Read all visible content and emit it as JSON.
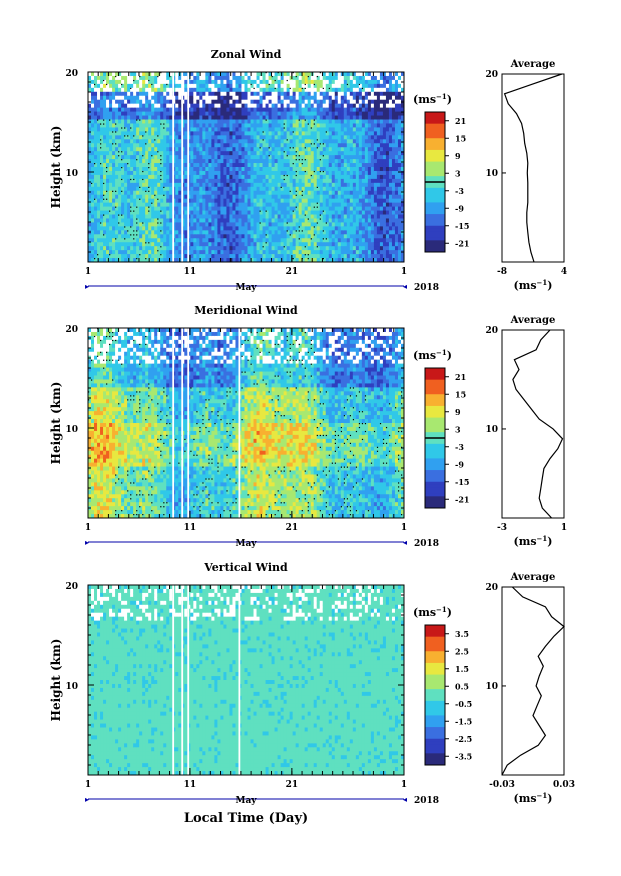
{
  "figure": {
    "x_month_label": "May",
    "x_axis_label": "Local Time (Day)",
    "year": "2018",
    "y_axis_label": "Height (km)",
    "cb_units": "(ms",
    "cb_exp": "−1",
    "avg_unit": "(ms",
    "avg_exp": "−1",
    "avg_unit_close": ")",
    "cb_units_close": ")",
    "colormap": [
      "#2a2a7a",
      "#2f3fbf",
      "#3a6fe0",
      "#30a0f0",
      "#30c8e8",
      "#5fe0c0",
      "#a8e870",
      "#e8e840",
      "#f8b030",
      "#f06020",
      "#c81818"
    ]
  },
  "chart_data": [
    {
      "type": "heatmap",
      "title": "Zonal Wind",
      "x_ticks": [
        "1",
        "11",
        "21",
        "1"
      ],
      "y_ticks": [
        "20",
        "10"
      ],
      "ylim": [
        1,
        20
      ],
      "colorbar": {
        "ticks": [
          "21",
          "15",
          "9",
          "3",
          "-3",
          "-9",
          "-15",
          "-21"
        ],
        "range": [
          -24,
          24
        ],
        "contour_at": 0
      },
      "average": {
        "title": "Average",
        "xticks": [
          "-8",
          "4"
        ],
        "xlim": [
          -8,
          4
        ],
        "height": [
          1,
          2,
          3,
          4,
          5,
          6,
          7,
          8,
          9,
          10,
          11,
          12,
          13,
          14,
          15,
          16,
          17,
          18,
          19,
          20
        ],
        "value": [
          -1.8,
          -2.4,
          -2.8,
          -3.0,
          -3.2,
          -3.2,
          -3.0,
          -3.0,
          -3.0,
          -3.1,
          -3.0,
          -3.2,
          -3.6,
          -3.8,
          -4.2,
          -5.2,
          -6.8,
          -7.5,
          -2.0,
          3.6
        ]
      }
    },
    {
      "type": "heatmap",
      "title": "Meridional Wind",
      "x_ticks": [
        "1",
        "11",
        "21",
        "1"
      ],
      "y_ticks": [
        "20",
        "10"
      ],
      "ylim": [
        1,
        20
      ],
      "colorbar": {
        "ticks": [
          "21",
          "15",
          "9",
          "3",
          "-3",
          "-9",
          "-15",
          "-21"
        ],
        "range": [
          -24,
          24
        ],
        "contour_at": 0
      },
      "average": {
        "title": "Average",
        "xticks": [
          "-3",
          "1"
        ],
        "xlim": [
          -3,
          1
        ],
        "height": [
          1,
          2,
          3,
          4,
          5,
          6,
          7,
          8,
          9,
          10,
          11,
          12,
          13,
          14,
          15,
          16,
          17,
          18,
          19,
          20
        ],
        "value": [
          0.2,
          -0.4,
          -0.6,
          -0.5,
          -0.4,
          -0.3,
          0.1,
          0.6,
          0.9,
          0.3,
          -0.6,
          -1.1,
          -1.6,
          -2.1,
          -2.3,
          -1.9,
          -2.2,
          -0.8,
          -0.5,
          0.1
        ]
      }
    },
    {
      "type": "heatmap",
      "title": "Vertical Wind",
      "x_ticks": [
        "1",
        "11",
        "21",
        "1"
      ],
      "y_ticks": [
        "20",
        "10"
      ],
      "ylim": [
        1,
        20
      ],
      "colorbar": {
        "ticks": [
          "3.5",
          "2.5",
          "1.5",
          "0.5",
          "-0.5",
          "-1.5",
          "-2.5",
          "-3.5"
        ],
        "range": [
          -4,
          4
        ],
        "contour_at": null
      },
      "average": {
        "title": "Average",
        "xticks": [
          "-0.03",
          "0.03"
        ],
        "xlim": [
          -0.03,
          0.03
        ],
        "height": [
          1,
          2,
          3,
          4,
          5,
          6,
          7,
          8,
          9,
          10,
          11,
          12,
          13,
          14,
          15,
          16,
          17,
          18,
          19,
          20
        ],
        "value": [
          -0.03,
          -0.025,
          -0.012,
          0.005,
          0.012,
          0.006,
          0.0,
          0.004,
          0.008,
          0.003,
          0.006,
          0.01,
          0.005,
          0.012,
          0.02,
          0.03,
          0.018,
          0.012,
          -0.01,
          -0.02
        ]
      }
    }
  ]
}
